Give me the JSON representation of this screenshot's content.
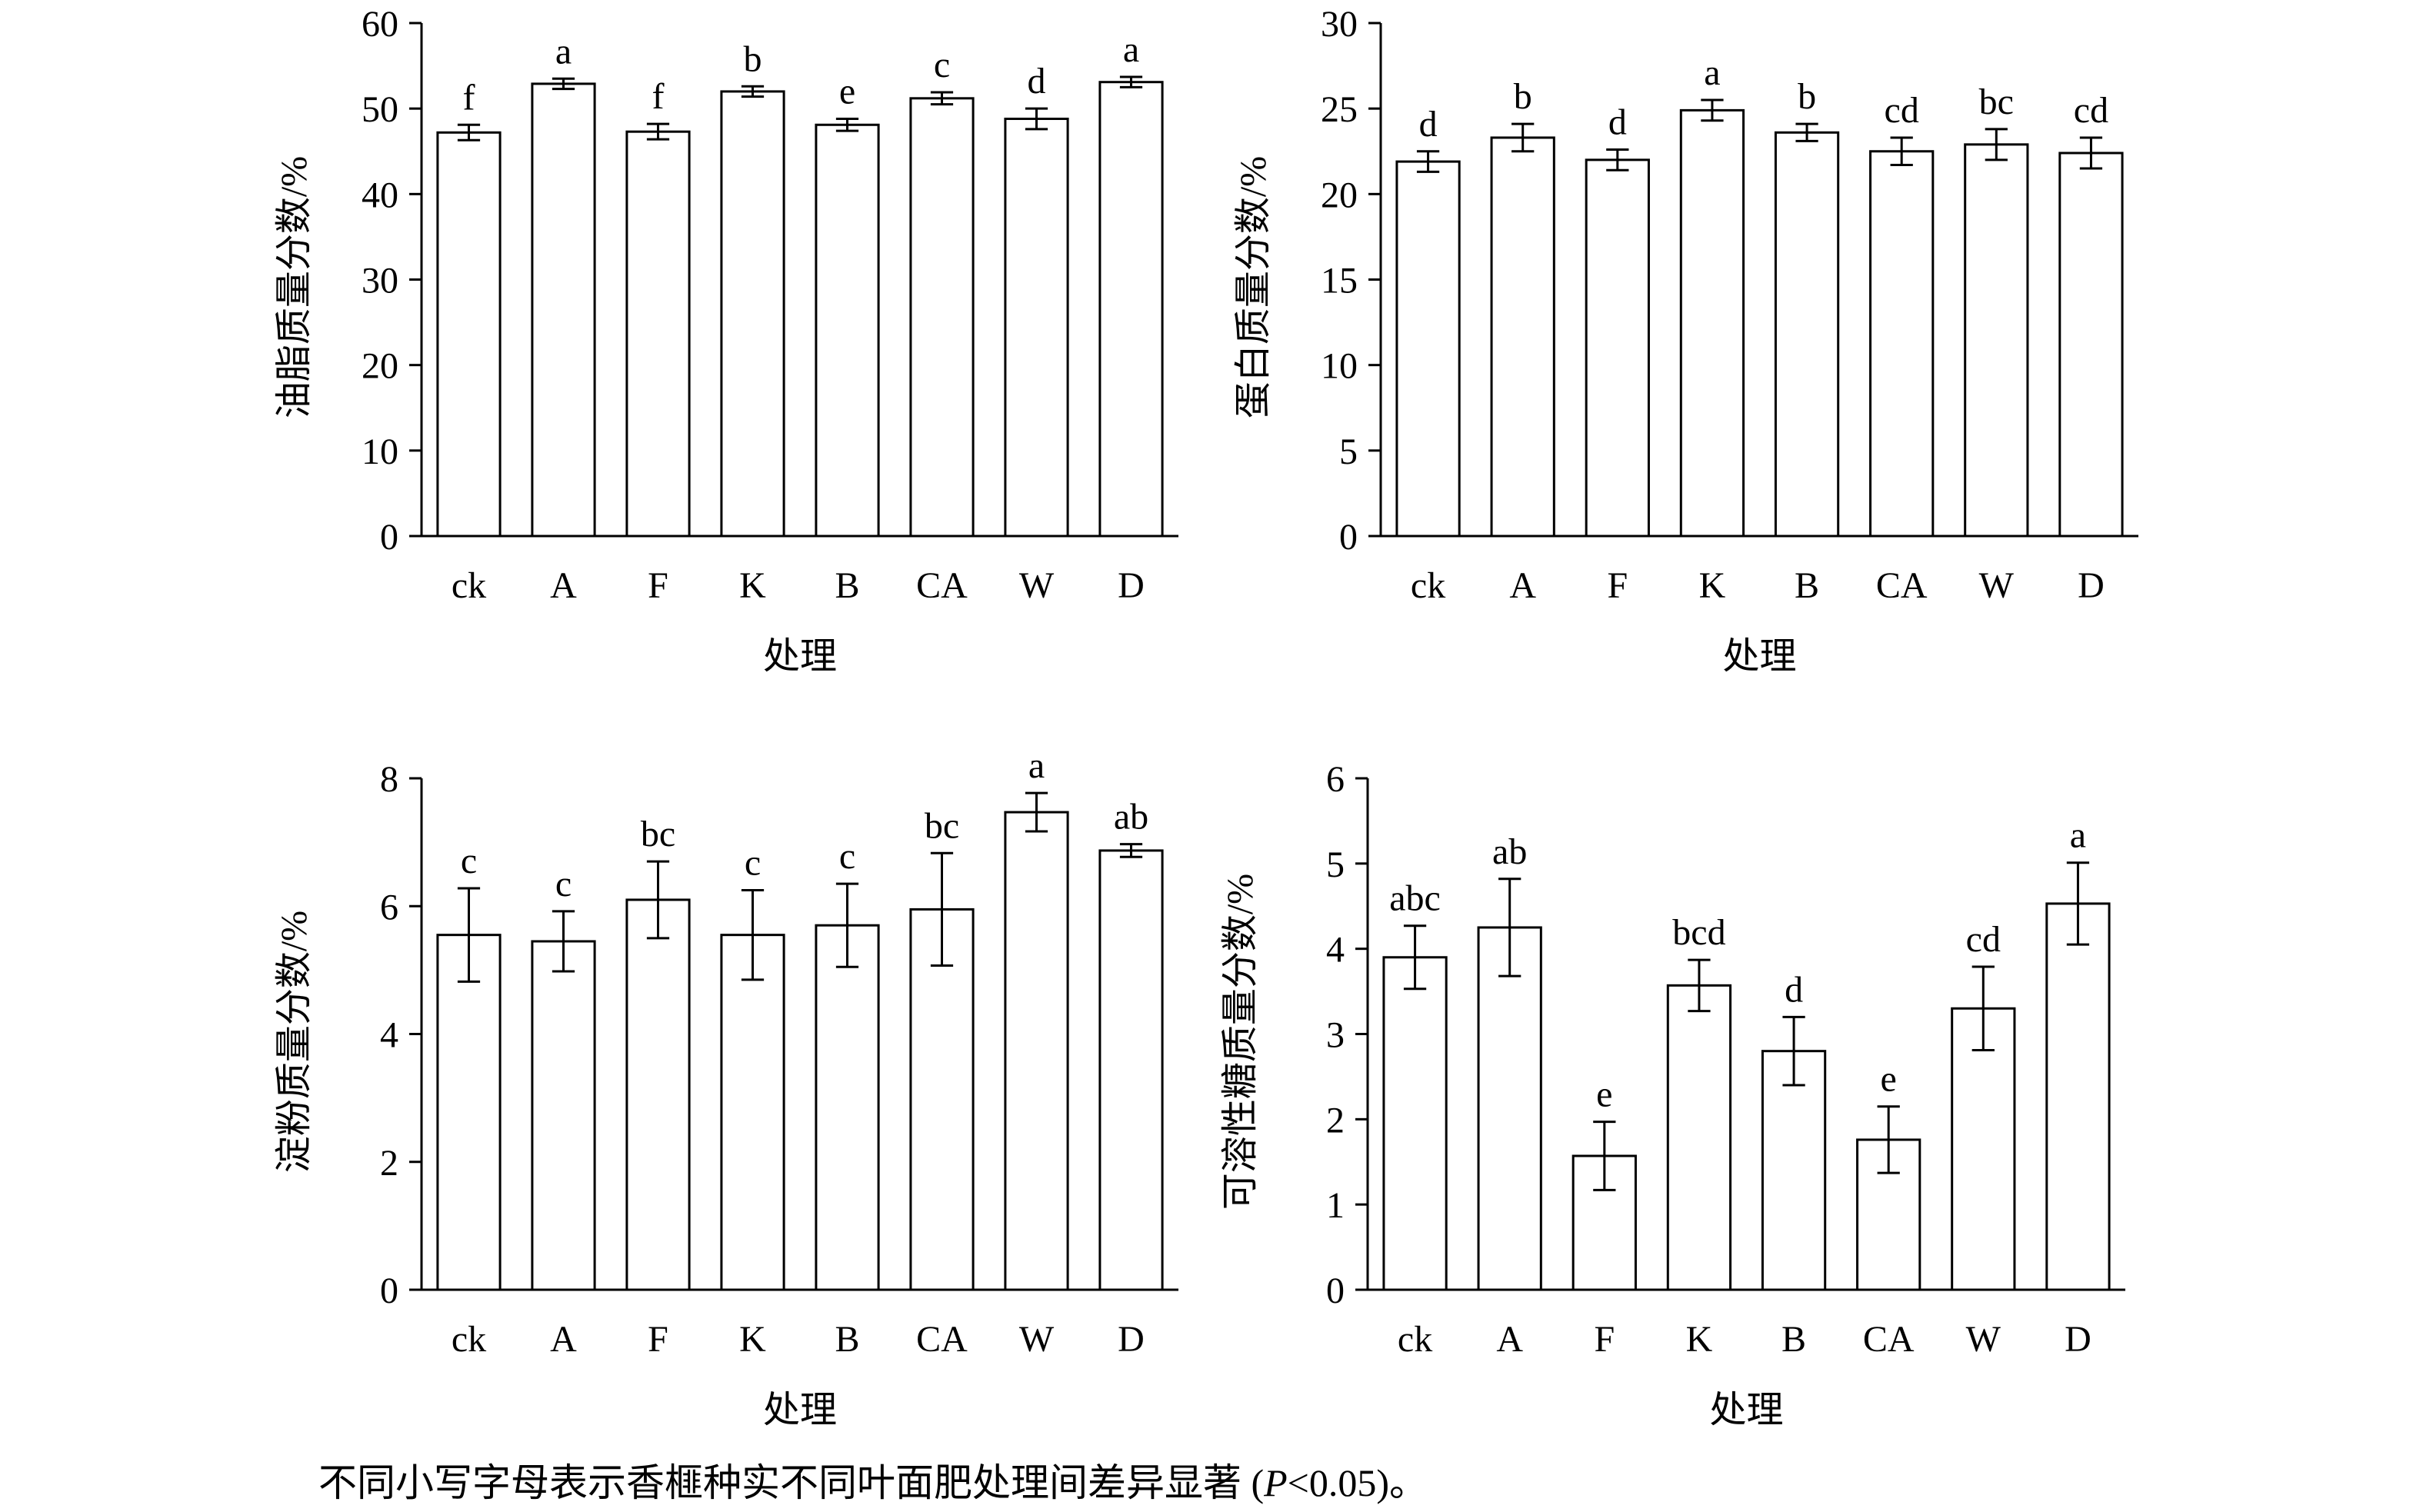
{
  "caption": {
    "main": "不同小写字母表示香榧种实不同叶面肥处理间差异显著 (",
    "p_symbol": "P",
    "condition": "<0.05)。"
  },
  "chart_data": [
    {
      "type": "bar",
      "title": "",
      "xlabel": "处理",
      "ylabel": "油脂质量分数/%",
      "categories": [
        "ck",
        "A",
        "F",
        "K",
        "B",
        "CA",
        "W",
        "D"
      ],
      "values": [
        47.2,
        52.9,
        47.3,
        52.0,
        48.1,
        51.2,
        48.8,
        53.1
      ],
      "errors": [
        0.9,
        0.6,
        0.9,
        0.6,
        0.7,
        0.7,
        1.2,
        0.6
      ],
      "significance": [
        "f",
        "a",
        "f",
        "b",
        "e",
        "c",
        "d",
        "a"
      ],
      "ylim": [
        0,
        60
      ],
      "yticks": [
        0,
        10,
        20,
        30,
        40,
        50,
        60
      ],
      "grid": false,
      "legend": "none"
    },
    {
      "type": "bar",
      "title": "",
      "xlabel": "处理",
      "ylabel": "蛋白质量分数/%",
      "categories": [
        "ck",
        "A",
        "F",
        "K",
        "B",
        "CA",
        "W",
        "D"
      ],
      "values": [
        21.9,
        23.3,
        22.0,
        24.9,
        23.6,
        22.5,
        22.9,
        22.4
      ],
      "errors": [
        0.6,
        0.8,
        0.6,
        0.6,
        0.5,
        0.8,
        0.9,
        0.9
      ],
      "significance": [
        "d",
        "b",
        "d",
        "a",
        "b",
        "cd",
        "bc",
        "cd"
      ],
      "ylim": [
        0,
        30
      ],
      "yticks": [
        0,
        5,
        10,
        15,
        20,
        25,
        30
      ],
      "grid": false,
      "legend": "none"
    },
    {
      "type": "bar",
      "title": "",
      "xlabel": "处理",
      "ylabel": "淀粉质量分数/%",
      "categories": [
        "ck",
        "A",
        "F",
        "K",
        "B",
        "CA",
        "W",
        "D"
      ],
      "values": [
        5.55,
        5.45,
        6.1,
        5.55,
        5.7,
        5.95,
        7.47,
        6.87
      ],
      "errors": [
        0.73,
        0.47,
        0.6,
        0.7,
        0.65,
        0.88,
        0.3,
        0.1
      ],
      "significance": [
        "c",
        "c",
        "bc",
        "c",
        "c",
        "bc",
        "a",
        "ab"
      ],
      "ylim": [
        0,
        8
      ],
      "yticks": [
        0,
        2,
        4,
        6,
        8
      ],
      "grid": false,
      "legend": "none"
    },
    {
      "type": "bar",
      "title": "",
      "xlabel": "处理",
      "ylabel": "可溶性糖质量分数/%",
      "categories": [
        "ck",
        "A",
        "F",
        "K",
        "B",
        "CA",
        "W",
        "D"
      ],
      "values": [
        3.9,
        4.25,
        1.57,
        3.57,
        2.8,
        1.76,
        3.3,
        4.53
      ],
      "errors": [
        0.37,
        0.57,
        0.4,
        0.3,
        0.4,
        0.39,
        0.49,
        0.48
      ],
      "significance": [
        "abc",
        "ab",
        "e",
        "bcd",
        "d",
        "e",
        "cd",
        "a"
      ],
      "ylim": [
        0,
        6
      ],
      "yticks": [
        0,
        1,
        2,
        3,
        4,
        5,
        6
      ],
      "grid": false,
      "legend": "none"
    }
  ]
}
